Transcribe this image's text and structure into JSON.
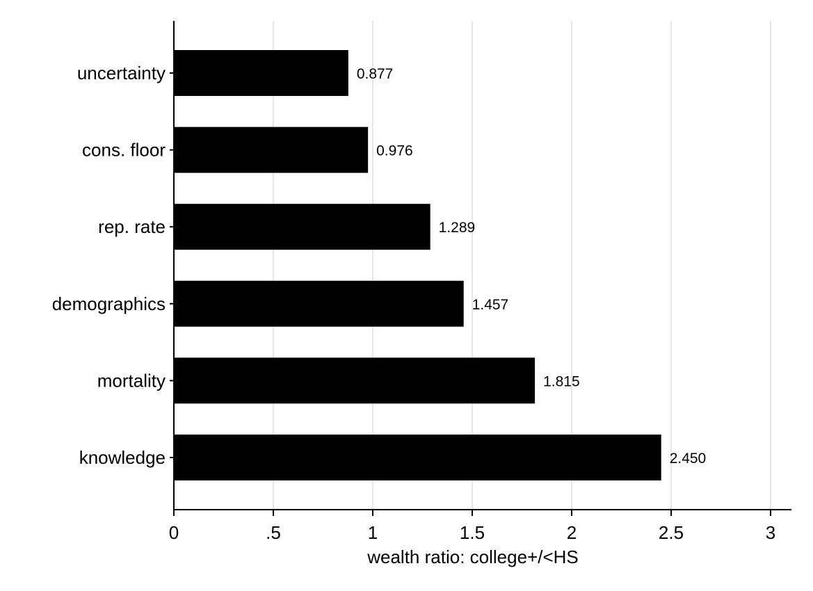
{
  "chart_data": {
    "type": "bar",
    "orientation": "horizontal",
    "categories": [
      "uncertainty",
      "cons. floor",
      "rep. rate",
      "demographics",
      "mortality",
      "knowledge"
    ],
    "values": [
      0.877,
      0.976,
      1.289,
      1.457,
      1.815,
      2.45
    ],
    "value_labels": [
      "0.877",
      "0.976",
      "1.289",
      "1.457",
      "1.815",
      "2.450"
    ],
    "xlabel": "wealth ratio: college+/<HS",
    "xlim": [
      0,
      3.1
    ],
    "xticks": [
      0,
      0.5,
      1,
      1.5,
      2,
      2.5,
      3
    ],
    "xtick_labels": [
      "0",
      ".5",
      "1",
      "1.5",
      "2",
      "2.5",
      "3"
    ],
    "grid": "vertical",
    "bar_color": "#000000",
    "grid_color": "#e6e6e6"
  }
}
